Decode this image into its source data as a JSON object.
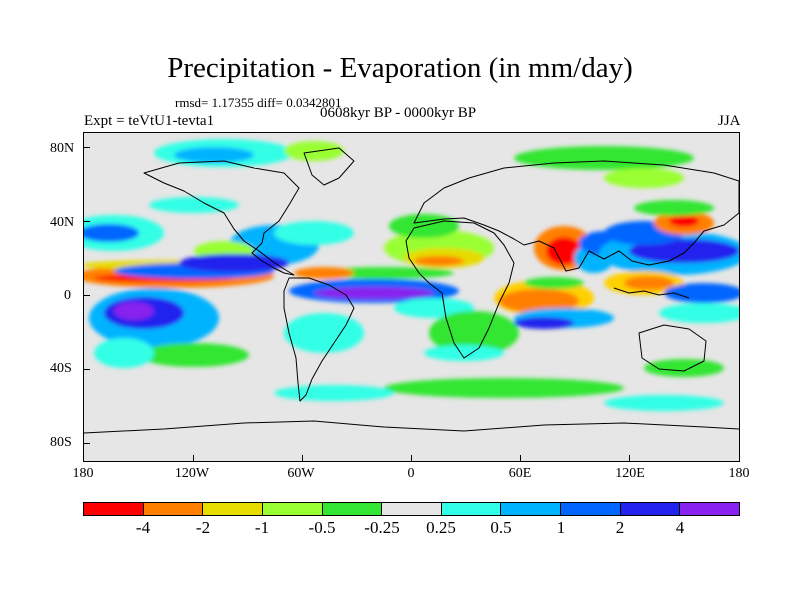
{
  "figure": {
    "title": "Precipitation - Evaporation (in mm/day)",
    "stats": "rmsd= 1.17355 diff= 0.0342801",
    "period": "0608kyr BP - 0000kyr BP",
    "experiment": "Expt = teVtU1-tevta1",
    "season": "JJA"
  },
  "axes": {
    "y_ticks": [
      "80N",
      "40N",
      "0",
      "40S",
      "80S"
    ],
    "x_ticks": [
      "180",
      "120W",
      "60W",
      "0",
      "60E",
      "120E",
      "180"
    ]
  },
  "colorbar": {
    "colors": [
      "#ff0000",
      "#ff8000",
      "#e6dc00",
      "#99ff33",
      "#33e633",
      "#e6e6e6",
      "#33ffe6",
      "#00b3ff",
      "#0066ff",
      "#2222ee",
      "#8822ee"
    ],
    "labels": [
      "-4",
      "-2",
      "-1",
      "-0.5",
      "-0.25",
      "0.25",
      "0.5",
      "1",
      "2",
      "4"
    ]
  }
}
